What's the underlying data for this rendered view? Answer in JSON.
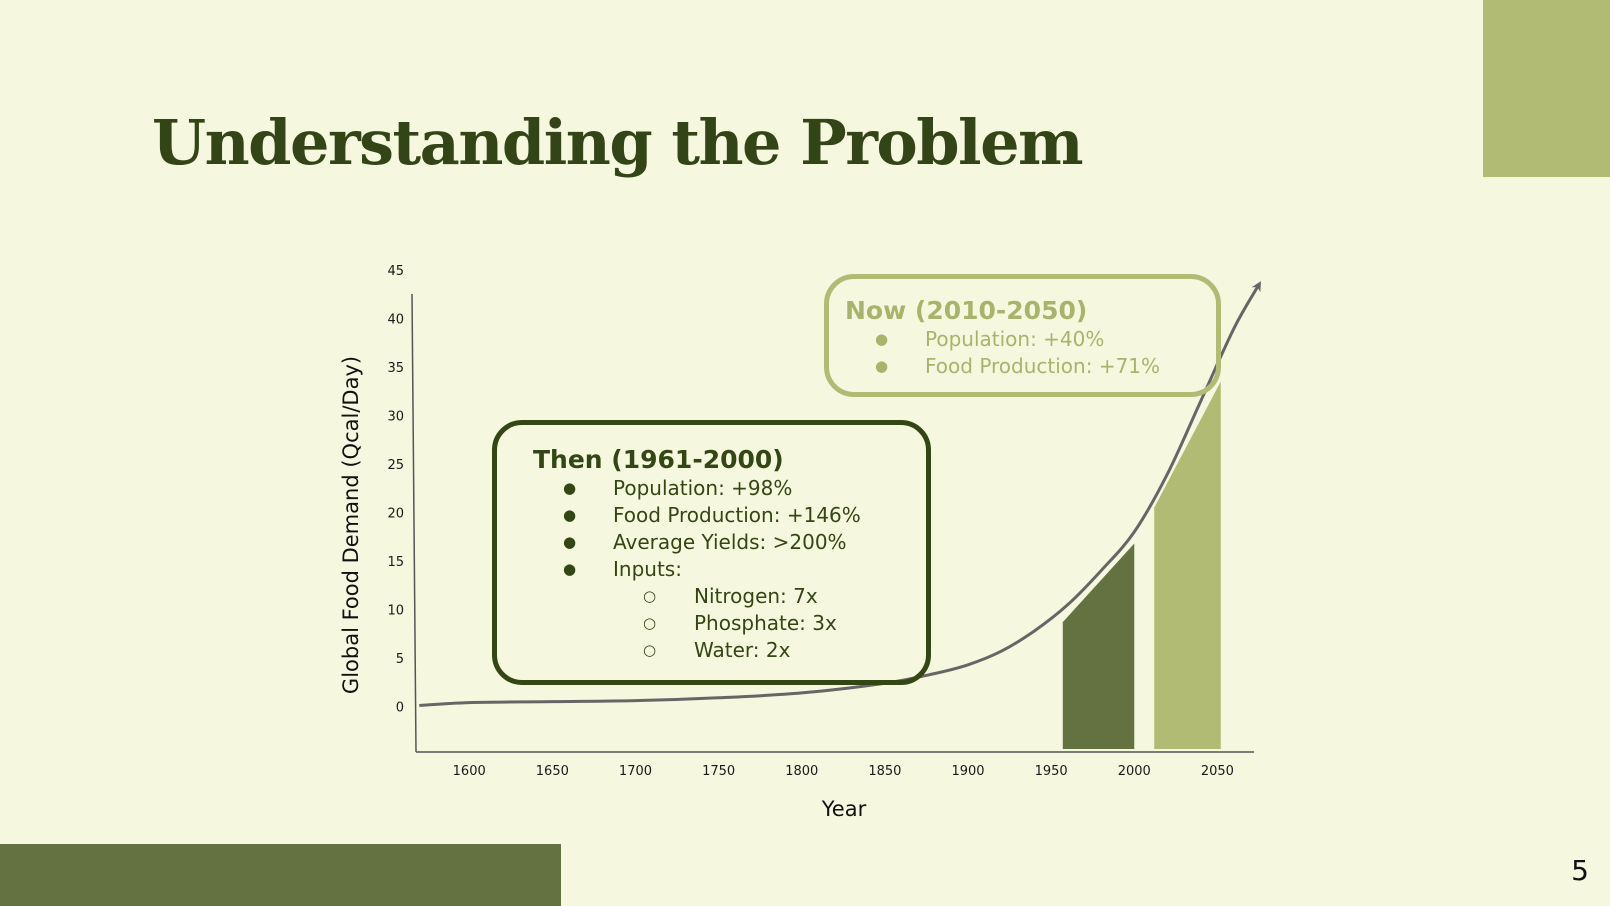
{
  "slide": {
    "title": "Understanding the Problem",
    "page_number": "5",
    "colors": {
      "title": "#334516",
      "background": "#f5f7df",
      "dark_green": "#647242",
      "light_green": "#b1bb74",
      "curve": "#666666"
    }
  },
  "callouts": {
    "then": {
      "title": "Then (1961-2000)",
      "items": [
        {
          "text": "Population: +98%"
        },
        {
          "text": "Food Production: +146%"
        },
        {
          "text": "Average Yields: >200%"
        },
        {
          "text": "Inputs:",
          "subitems": [
            "Nitrogen: 7x",
            "Phosphate: 3x",
            "Water: 2x"
          ]
        }
      ]
    },
    "now": {
      "title": "Now (2010-2050)",
      "items": [
        {
          "text": "Population: +40%"
        },
        {
          "text": "Food Production: +71%"
        }
      ]
    }
  },
  "chart_data": {
    "type": "area",
    "title": "",
    "xlabel": "Year",
    "ylabel": "Global Food Demand (Qcal/Day)",
    "xlim": [
      1568,
      2072
    ],
    "ylim": [
      -5,
      45
    ],
    "x_ticks": [
      1600,
      1650,
      1700,
      1750,
      1800,
      1850,
      1900,
      1950,
      2000,
      2050
    ],
    "y_ticks": [
      0,
      5,
      10,
      15,
      20,
      25,
      30,
      35,
      40,
      45
    ],
    "grid": false,
    "legend": "none",
    "series": [
      {
        "type": "line",
        "x": [
          1570,
          1600,
          1650,
          1700,
          1750,
          1800,
          1850,
          1880,
          1900,
          1920,
          1940,
          1960,
          1980,
          2000,
          2020,
          2040,
          2060,
          2075
        ],
        "y": [
          0.1,
          0.4,
          0.5,
          0.6,
          0.9,
          1.4,
          2.4,
          3.4,
          4.3,
          5.7,
          7.8,
          10.5,
          14.0,
          18.0,
          24.0,
          31.5,
          39.0,
          43.5
        ]
      }
    ],
    "highlight_ranges": [
      {
        "x": [
          1957,
          2000
        ],
        "y_top": [
          8.7,
          16.8
        ],
        "color": "#647242"
      },
      {
        "x": [
          2012,
          2052
        ],
        "y_top": [
          20.5,
          33.5
        ],
        "color": "#b1bb74"
      }
    ]
  }
}
